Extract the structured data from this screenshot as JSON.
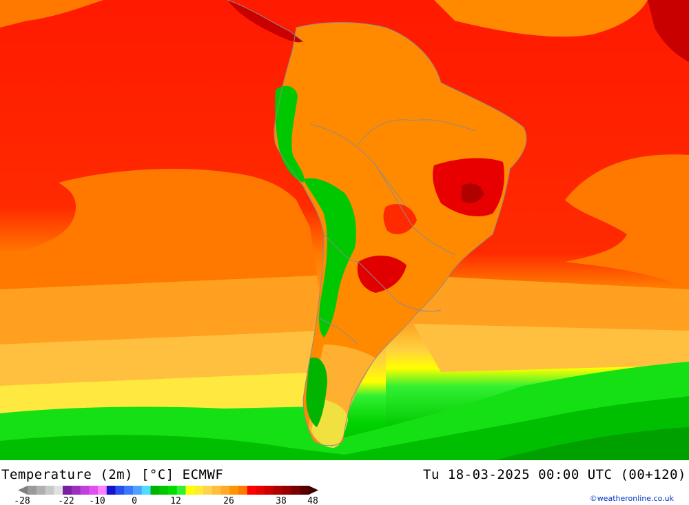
{
  "header": {
    "title": "Temperature (2m) [°C] ECMWF",
    "valid_time": "Tu 18-03-2025 00:00 UTC (00+120)"
  },
  "legend": {
    "tick_labels": [
      "-28",
      "-22",
      "-10",
      "0",
      "12",
      "26",
      "38",
      "48"
    ],
    "colors": [
      "#9a9a9a",
      "#b0b0b0",
      "#c8c8c8",
      "#e0e0e0",
      "#7a1fa0",
      "#9b2fc0",
      "#bf3fdf",
      "#e050f0",
      "#ff80ff",
      "#1414c8",
      "#2850f0",
      "#3c78ff",
      "#50a0ff",
      "#50dcff",
      "#00b400",
      "#00c800",
      "#00dc00",
      "#32f032",
      "#ffff00",
      "#ffeb32",
      "#ffd250",
      "#ffbe3c",
      "#ffaa28",
      "#ff9600",
      "#ff7800",
      "#ff0000",
      "#e60000",
      "#c80000",
      "#af0000",
      "#960000",
      "#780000",
      "#5a0000"
    ]
  },
  "credit": "©weatheronline.co.uk",
  "palette": {
    "ocean_hot": "#ff1a00",
    "ocean_warm": "#ff7800",
    "ocean_mild": "#ffaa28",
    "yellow": "#ffff00",
    "green": "#00c800",
    "dark_green": "#00a000",
    "land_orange": "#ff8a00",
    "land_red": "#e80000",
    "border_gray": "#8c8c8c"
  }
}
